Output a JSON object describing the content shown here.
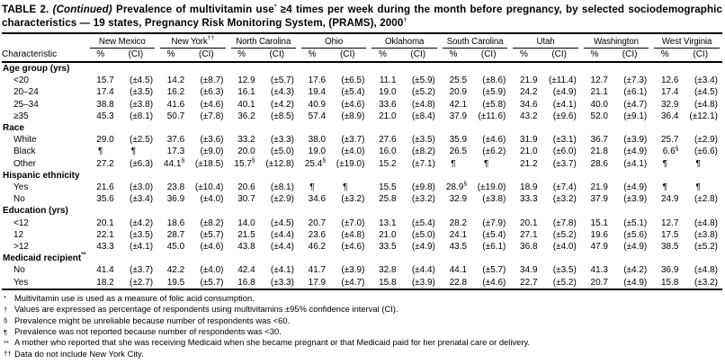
{
  "title": {
    "table_label": "TABLE 2.",
    "continued": "(Continued)",
    "text": "Prevalence of multivitamin use* ≥4 times per week during the month before pregnancy, by selected sociodemographic characteristics — 19 states, Pregnancy Risk Monitoring System, (PRAMS), 2000†"
  },
  "header": {
    "characteristic": "Characteristic",
    "pct": "%",
    "ci": "(CI)",
    "states": [
      "New Mexico",
      "New York††",
      "North Carolina",
      "Ohio",
      "Oklahoma",
      "South Carolina",
      "Utah",
      "Washington",
      "West Virginia"
    ]
  },
  "sections": [
    {
      "header": "Age group (yrs)",
      "rows": [
        {
          "label": "<20",
          "values": [
            [
              "15.7",
              "(±4.5)"
            ],
            [
              "14.2",
              "(±8.7)"
            ],
            [
              "12.9",
              "(±5.7)"
            ],
            [
              "17.6",
              "(±6.5)"
            ],
            [
              "11.1",
              "(±5.9)"
            ],
            [
              "25.5",
              "(±8.6)"
            ],
            [
              "21.9",
              "(±11.4)"
            ],
            [
              "12.7",
              "(±7.3)"
            ],
            [
              "12.6",
              "(±3.4)"
            ]
          ]
        },
        {
          "label": "20–24",
          "values": [
            [
              "17.4",
              "(±3.5)"
            ],
            [
              "16.2",
              "(±6.3)"
            ],
            [
              "16.1",
              "(±4.3)"
            ],
            [
              "19.4",
              "(±5.4)"
            ],
            [
              "19.0",
              "(±5.2)"
            ],
            [
              "20.9",
              "(±5.9)"
            ],
            [
              "24.2",
              "(±4.9)"
            ],
            [
              "21.1",
              "(±6.1)"
            ],
            [
              "17.4",
              "(±4.5)"
            ]
          ]
        },
        {
          "label": "25–34",
          "values": [
            [
              "38.8",
              "(±3.8)"
            ],
            [
              "41.6",
              "(±4.6)"
            ],
            [
              "40.1",
              "(±4.2)"
            ],
            [
              "40.9",
              "(±4.6)"
            ],
            [
              "33.6",
              "(±4.8)"
            ],
            [
              "42.1",
              "(±5.8)"
            ],
            [
              "34.6",
              "(±4.1)"
            ],
            [
              "40.0",
              "(±4.7)"
            ],
            [
              "32.9",
              "(±4.8)"
            ]
          ]
        },
        {
          "label": "≥35",
          "values": [
            [
              "45.3",
              "(±8.1)"
            ],
            [
              "50.7",
              "(±7.8)"
            ],
            [
              "36.2",
              "(±8.5)"
            ],
            [
              "57.4",
              "(±8.9)"
            ],
            [
              "21.0",
              "(±8.4)"
            ],
            [
              "37.9",
              "(±11.6)"
            ],
            [
              "43.2",
              "(±9.6)"
            ],
            [
              "52.0",
              "(±9.1)"
            ],
            [
              "36.4",
              "(±12.1)"
            ]
          ]
        }
      ]
    },
    {
      "header": "Race",
      "rows": [
        {
          "label": "White",
          "values": [
            [
              "29.0",
              "(±2.5)"
            ],
            [
              "37.6",
              "(±3.6)"
            ],
            [
              "33.2",
              "(±3.3)"
            ],
            [
              "38.0",
              "(±3.7)"
            ],
            [
              "27.6",
              "(±3.5)"
            ],
            [
              "35.9",
              "(±4.6)"
            ],
            [
              "31.9",
              "(±3.1)"
            ],
            [
              "36.7",
              "(±3.9)"
            ],
            [
              "25.7",
              "(±2.9)"
            ]
          ]
        },
        {
          "label": "Black",
          "values": [
            [
              "¶",
              "¶"
            ],
            [
              "17.3",
              "(±9.0)"
            ],
            [
              "20.0",
              "(±5.0)"
            ],
            [
              "19.0",
              "(±4.0)"
            ],
            [
              "16.0",
              "(±8.2)"
            ],
            [
              "26.5",
              "(±6.2)"
            ],
            [
              "21.0",
              "(±6.0)"
            ],
            [
              "21.8",
              "(±4.9)"
            ],
            [
              "6.6§",
              "(±6.6)"
            ]
          ]
        },
        {
          "label": "Other",
          "values": [
            [
              "27.2",
              "(±6.3)"
            ],
            [
              "44.1§",
              "(±18.5)"
            ],
            [
              "15.7§",
              "(±12.8)"
            ],
            [
              "25.4§",
              "(±19.0)"
            ],
            [
              "15.2",
              "(±7.1)"
            ],
            [
              "¶",
              "¶"
            ],
            [
              "21.2",
              "(±3.7)"
            ],
            [
              "28.6",
              "(±4.1)"
            ],
            [
              "¶",
              "¶"
            ]
          ]
        }
      ]
    },
    {
      "header": "Hispanic ethnicity",
      "rows": [
        {
          "label": "Yes",
          "values": [
            [
              "21.6",
              "(±3.0)"
            ],
            [
              "23.8",
              "(±10.4)"
            ],
            [
              "20.6",
              "(±8.1)"
            ],
            [
              "¶",
              "¶"
            ],
            [
              "15.5",
              "(±9.8)"
            ],
            [
              "28.9§",
              "(±19.0)"
            ],
            [
              "18.9",
              "(±7.4)"
            ],
            [
              "21.9",
              "(±4.9)"
            ],
            [
              "¶",
              "¶"
            ]
          ]
        },
        {
          "label": "No",
          "values": [
            [
              "35.6",
              "(±3.4)"
            ],
            [
              "36.9",
              "(±4.0)"
            ],
            [
              "30.7",
              "(±2.9)"
            ],
            [
              "34.6",
              "(±3.2)"
            ],
            [
              "25.8",
              "(±3.2)"
            ],
            [
              "32.9",
              "(±3.8)"
            ],
            [
              "33.3",
              "(±3.2)"
            ],
            [
              "37.9",
              "(±3.9)"
            ],
            [
              "24.9",
              "(±2.8)"
            ]
          ]
        }
      ]
    },
    {
      "header": "Education (yrs)",
      "rows": [
        {
          "label": "<12",
          "values": [
            [
              "20.1",
              "(±4.2)"
            ],
            [
              "18.6",
              "(±8.2)"
            ],
            [
              "14.0",
              "(±4.5)"
            ],
            [
              "20.7",
              "(±7.0)"
            ],
            [
              "13.1",
              "(±5.4)"
            ],
            [
              "28.2",
              "(±7.9)"
            ],
            [
              "20.1",
              "(±7.8)"
            ],
            [
              "15.1",
              "(±5.1)"
            ],
            [
              "12.7",
              "(±4.8)"
            ]
          ]
        },
        {
          "label": "12",
          "values": [
            [
              "22.1",
              "(±3.5)"
            ],
            [
              "28.7",
              "(±5.7)"
            ],
            [
              "21.5",
              "(±4.4)"
            ],
            [
              "23.6",
              "(±4.8)"
            ],
            [
              "21.0",
              "(±5.0)"
            ],
            [
              "24.1",
              "(±5.4)"
            ],
            [
              "27.1",
              "(±5.2)"
            ],
            [
              "19.6",
              "(±5.6)"
            ],
            [
              "17.5",
              "(±3.8)"
            ]
          ]
        },
        {
          "label": ">12",
          "values": [
            [
              "43.3",
              "(±4.1)"
            ],
            [
              "45.0",
              "(±4.6)"
            ],
            [
              "43.8",
              "(±4.4)"
            ],
            [
              "46.2",
              "(±4.6)"
            ],
            [
              "33.5",
              "(±4.9)"
            ],
            [
              "43.5",
              "(±6.1)"
            ],
            [
              "36.8",
              "(±4.0)"
            ],
            [
              "47.9",
              "(±4.9)"
            ],
            [
              "38.5",
              "(±5.2)"
            ]
          ]
        }
      ]
    },
    {
      "header": "Medicaid recipient**",
      "rows": [
        {
          "label": "No",
          "values": [
            [
              "41.4",
              "(±3.7)"
            ],
            [
              "42.2",
              "(±4.0)"
            ],
            [
              "42.4",
              "(±4.1)"
            ],
            [
              "41.7",
              "(±3.9)"
            ],
            [
              "32.8",
              "(±4.4)"
            ],
            [
              "44.1",
              "(±5.7)"
            ],
            [
              "34.9",
              "(±3.5)"
            ],
            [
              "41.3",
              "(±4.2)"
            ],
            [
              "36.9",
              "(±4.8)"
            ]
          ]
        },
        {
          "label": "Yes",
          "values": [
            [
              "18.2",
              "(±2.7)"
            ],
            [
              "19.5",
              "(±5.7)"
            ],
            [
              "16.8",
              "(±3.3)"
            ],
            [
              "17.9",
              "(±4.7)"
            ],
            [
              "15.8",
              "(±3.9)"
            ],
            [
              "22.8",
              "(±4.6)"
            ],
            [
              "22.7",
              "(±5.2)"
            ],
            [
              "20.7",
              "(±4.9)"
            ],
            [
              "15.8",
              "(±3.2)"
            ]
          ]
        }
      ]
    }
  ],
  "footnotes": [
    {
      "marker": "*",
      "text": "Multivitamin use is used as a measure of folic acid consumption."
    },
    {
      "marker": "†",
      "text": "Values are expressed as percentage of respondents using multivitamins ±95% confidence interval (CI)."
    },
    {
      "marker": "§",
      "text": "Prevalence might be unreliable because number of respondents was <60."
    },
    {
      "marker": "¶",
      "text": "Prevalence was not reported because number of respondents was <30."
    },
    {
      "marker": "**",
      "text": "A mother who reported that she was receiving Medicaid when she became pregnant or that Medicaid paid for her prenatal care or delivery."
    },
    {
      "marker": "††",
      "text": "Data do not include New York City."
    }
  ]
}
